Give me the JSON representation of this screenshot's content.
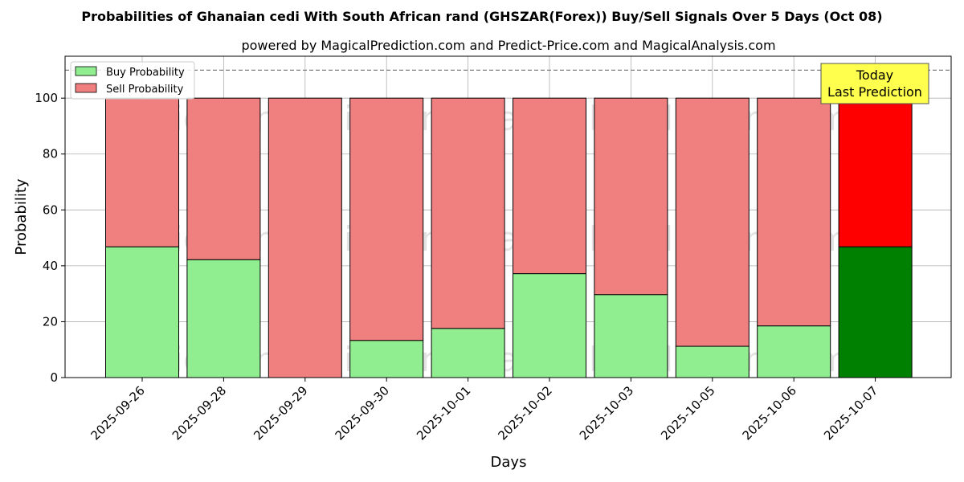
{
  "chart_data": {
    "type": "bar",
    "stacked": true,
    "title": "Probabilities of Ghanaian cedi With South African rand (GHSZAR(Forex)) Buy/Sell Signals Over 5 Days (Oct 08)",
    "subtitle": "powered by MagicalPrediction.com and Predict-Price.com and MagicalAnalysis.com",
    "xlabel": "Days",
    "ylabel": "Probability",
    "ylim": [
      0,
      115
    ],
    "yticks": [
      0,
      20,
      40,
      60,
      80,
      100
    ],
    "grid": true,
    "legend_position": "top-left",
    "reference_line": 110,
    "categories": [
      "2025-09-26",
      "2025-09-28",
      "2025-09-29",
      "2025-09-30",
      "2025-10-01",
      "2025-10-02",
      "2025-10-03",
      "2025-10-05",
      "2025-10-06",
      "2025-10-07"
    ],
    "series": [
      {
        "name": "Buy Probability",
        "color": "#90ee90",
        "highlight_color": "#008000",
        "values": [
          46.8,
          42.2,
          0.0,
          13.3,
          17.6,
          37.2,
          29.7,
          11.2,
          18.5,
          46.8
        ]
      },
      {
        "name": "Sell Probability",
        "color": "#f08080",
        "highlight_color": "#ff0000",
        "values": [
          53.2,
          57.8,
          100.0,
          86.7,
          82.4,
          62.8,
          70.3,
          88.8,
          81.5,
          53.2
        ]
      }
    ],
    "highlight_index": 9,
    "annotation": {
      "lines": [
        "Today",
        "Last Prediction"
      ],
      "background": "#ffff4d"
    },
    "watermarks": [
      "MagicalAnalysis.com",
      "MagicalPrediction.com"
    ]
  }
}
